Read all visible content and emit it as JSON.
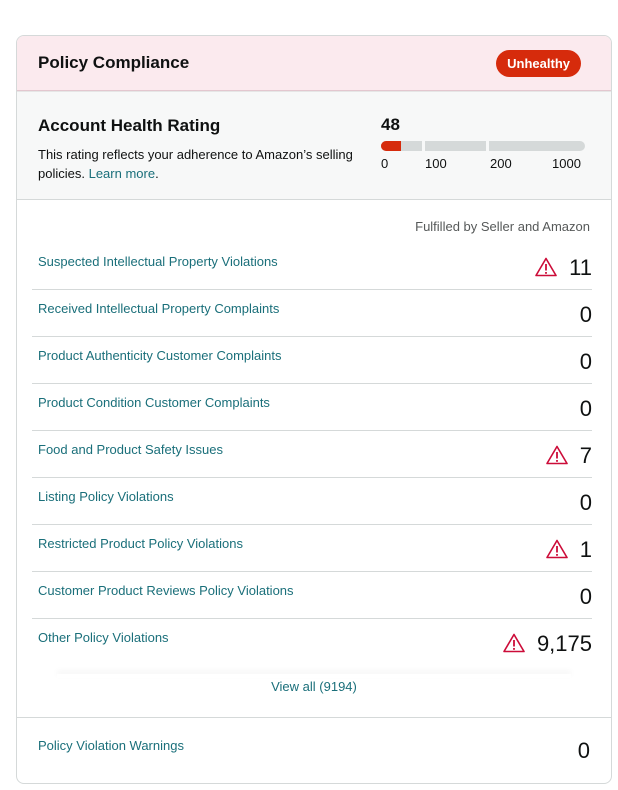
{
  "header": {
    "title": "Policy Compliance",
    "status_badge": "Unhealthy"
  },
  "account_health": {
    "title": "Account Health Rating",
    "description": "This rating reflects your adherence to Amazon’s selling policies.",
    "learn_more": "Learn more",
    "rating": "48",
    "scale_ticks": [
      "0",
      "100",
      "200",
      "1000"
    ],
    "rating_fraction_of_first_segment": 0.48
  },
  "violations": {
    "scope_label": "Fulfilled by Seller and Amazon",
    "rows": [
      {
        "label": "Suspected Intellectual Property Violations",
        "count": "11",
        "warning": true
      },
      {
        "label": "Received Intellectual Property Complaints",
        "count": "0",
        "warning": false
      },
      {
        "label": "Product Authenticity Customer Complaints",
        "count": "0",
        "warning": false
      },
      {
        "label": "Product Condition Customer Complaints",
        "count": "0",
        "warning": false
      },
      {
        "label": "Food and Product Safety Issues",
        "count": "7",
        "warning": true
      },
      {
        "label": "Listing Policy Violations",
        "count": "0",
        "warning": false
      },
      {
        "label": "Restricted Product Policy Violations",
        "count": "1",
        "warning": true
      },
      {
        "label": "Customer Product Reviews Policy Violations",
        "count": "0",
        "warning": false
      },
      {
        "label": "Other Policy Violations",
        "count": "9,175",
        "warning": true
      }
    ],
    "view_all": "View all (9194)"
  },
  "warnings_section": {
    "label": "Policy Violation Warnings",
    "count": "0"
  },
  "colors": {
    "unhealthy": "#d62b0c",
    "link": "#1a6f7a",
    "warning_icon": "#cc0c39"
  },
  "icons": {
    "warning": "warning-triangle-icon"
  }
}
